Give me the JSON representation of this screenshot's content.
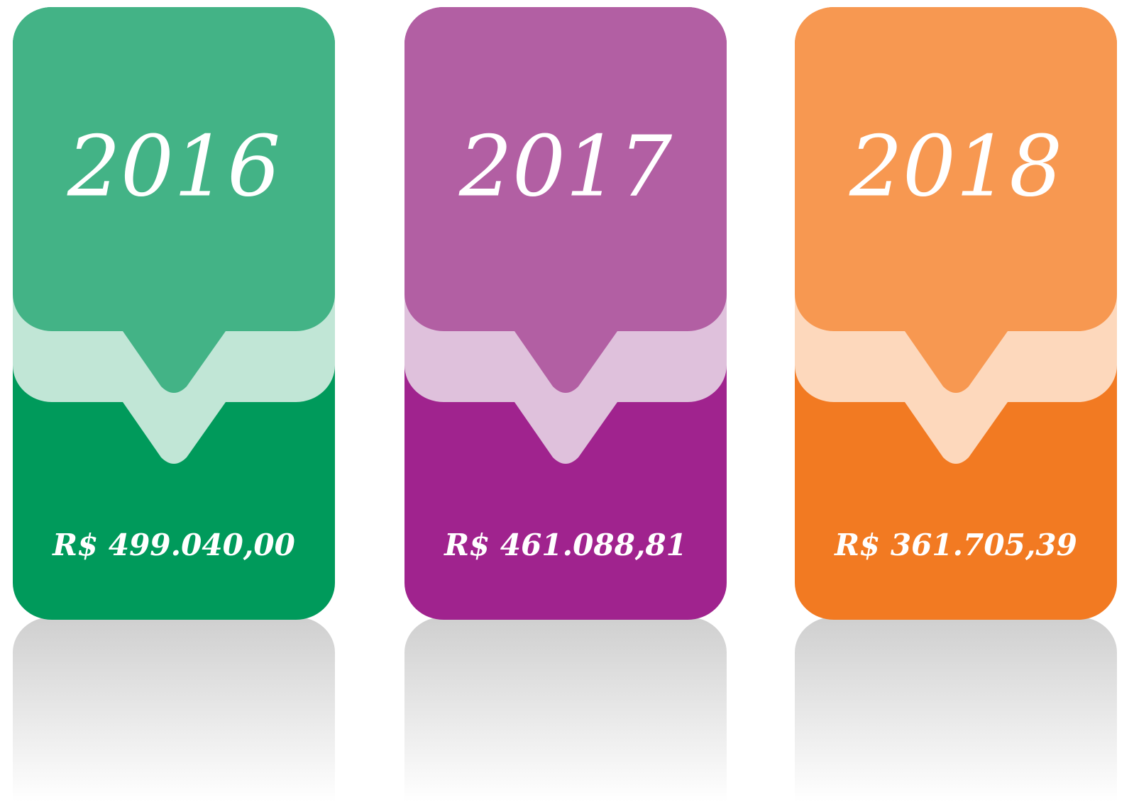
{
  "cards": [
    {
      "year": "2016",
      "amount": "R$ 499.040,00"
    },
    {
      "year": "2017",
      "amount": "R$ 461.088,81"
    },
    {
      "year": "2018",
      "amount": "R$ 361.705,39"
    }
  ]
}
